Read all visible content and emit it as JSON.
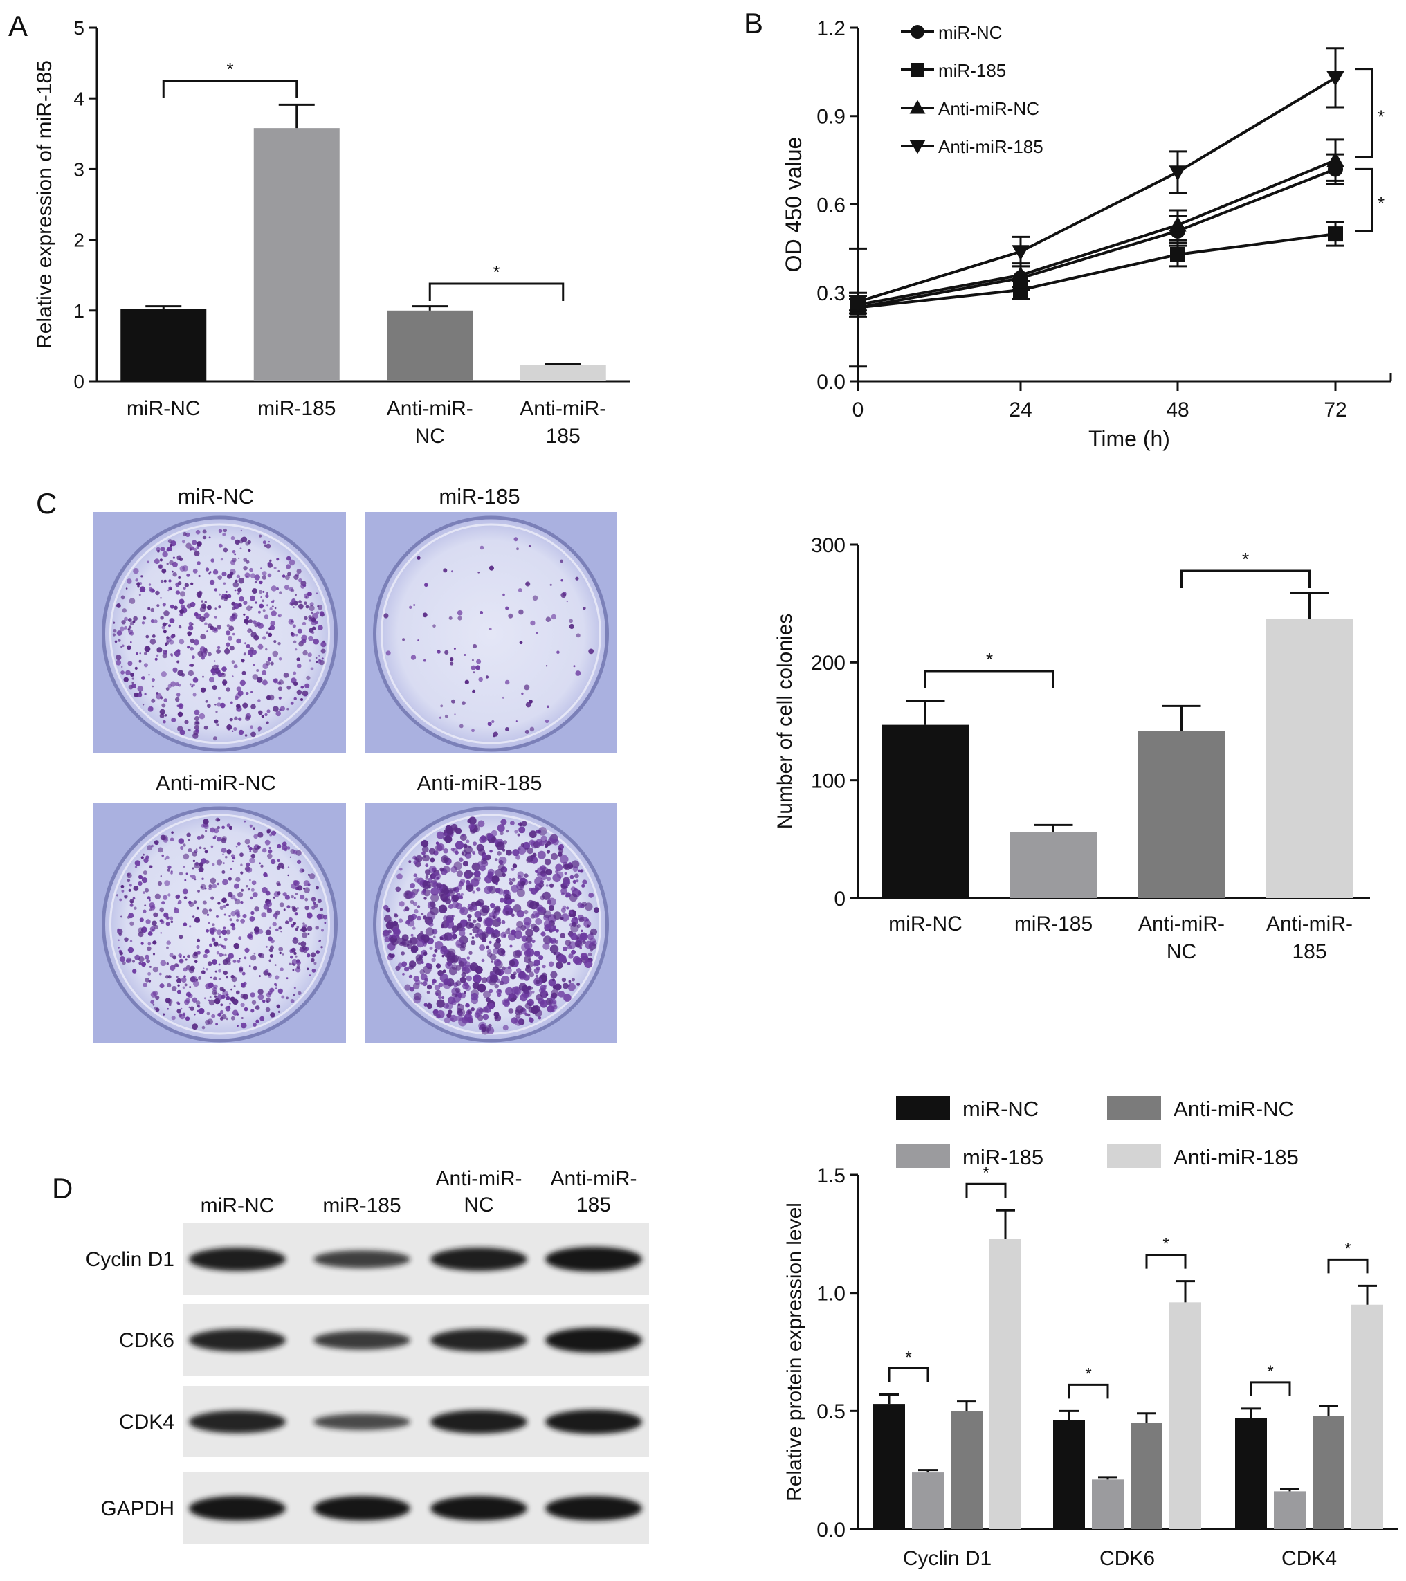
{
  "panel_letters": {
    "a": "A",
    "b": "B",
    "c": "C",
    "d": "D"
  },
  "colors": {
    "miR-NC": "#111111",
    "miR-185": "#9b9b9e",
    "Anti-miR-NC": "#7b7b7b",
    "Anti-miR-185": "#d4d4d4",
    "axis": "#111111",
    "plate_bg": "#aab1e0",
    "colony": "#5a2b86",
    "blot_bg": "#e8e8e8",
    "band": "#141414"
  },
  "chart_data": [
    {
      "id": "A",
      "type": "bar",
      "ylabel": "Relative expression of miR-185",
      "ylim": [
        0,
        5
      ],
      "yticks": [
        0,
        1,
        2,
        3,
        4,
        5
      ],
      "categories": [
        [
          "miR-NC"
        ],
        [
          "miR-185"
        ],
        [
          "Anti-miR-",
          "NC"
        ],
        [
          "Anti-miR-",
          "185"
        ]
      ],
      "values": [
        1.02,
        3.58,
        1.0,
        0.23
      ],
      "errors": [
        0.04,
        0.33,
        0.06,
        0.01
      ],
      "significance": [
        {
          "from": 0,
          "to": 1,
          "label": "*"
        },
        {
          "from": 2,
          "to": 3,
          "label": "*"
        }
      ]
    },
    {
      "id": "B",
      "type": "line",
      "xlabel": "Time (h)",
      "ylabel": "OD 450 value",
      "x": [
        0,
        24,
        48,
        72
      ],
      "xticks": [
        0,
        24,
        48,
        72
      ],
      "ylim": [
        0.0,
        1.2
      ],
      "yticks": [
        "0.0",
        "0.3",
        "0.6",
        "0.9",
        "1.2"
      ],
      "legend_position": "top-left",
      "series": [
        {
          "name": "miR-NC",
          "marker": "circle",
          "values": [
            0.25,
            0.35,
            0.51,
            0.72
          ],
          "errors": [
            0.2,
            0.04,
            0.05,
            0.05
          ]
        },
        {
          "name": "miR-185",
          "marker": "square",
          "values": [
            0.25,
            0.31,
            0.43,
            0.5
          ],
          "errors": [
            0.03,
            0.03,
            0.04,
            0.04
          ]
        },
        {
          "name": "Anti-miR-NC",
          "marker": "triangle-up",
          "values": [
            0.26,
            0.36,
            0.53,
            0.75
          ],
          "errors": [
            0.03,
            0.04,
            0.05,
            0.07
          ]
        },
        {
          "name": "Anti-miR-185",
          "marker": "triangle-down",
          "values": [
            0.27,
            0.44,
            0.71,
            1.03
          ],
          "errors": [
            0.03,
            0.05,
            0.07,
            0.1
          ]
        }
      ],
      "significance": [
        {
          "x": 72,
          "y1": 0.76,
          "y2": 1.06,
          "label": "*"
        },
        {
          "x": 72,
          "y1": 0.51,
          "y2": 0.72,
          "label": "*"
        }
      ]
    },
    {
      "id": "C",
      "type": "bar",
      "ylabel": "Number of cell colonies",
      "ylim": [
        0,
        300
      ],
      "yticks": [
        0,
        100,
        200,
        300
      ],
      "categories": [
        [
          "miR-NC"
        ],
        [
          "miR-185"
        ],
        [
          "Anti-miR-",
          "NC"
        ],
        [
          "Anti-miR-",
          "185"
        ]
      ],
      "values": [
        147,
        56,
        142,
        237
      ],
      "errors": [
        20,
        6,
        21,
        22
      ],
      "significance": [
        {
          "from": 0,
          "to": 1,
          "label": "*"
        },
        {
          "from": 2,
          "to": 3,
          "label": "*"
        }
      ]
    },
    {
      "id": "D",
      "type": "bar",
      "ylabel": "Relative protein expression level",
      "ylim": [
        0.0,
        1.5
      ],
      "yticks": [
        "0.0",
        "0.5",
        "1.0",
        "1.5"
      ],
      "categories": [
        "Cyclin D1",
        "CDK6",
        "CDK4"
      ],
      "legend_position": "top",
      "series": [
        {
          "name": "miR-NC",
          "values": [
            0.53,
            0.46,
            0.47
          ],
          "errors": [
            0.04,
            0.04,
            0.04
          ]
        },
        {
          "name": "miR-185",
          "values": [
            0.24,
            0.21,
            0.16
          ],
          "errors": [
            0.01,
            0.01,
            0.01
          ]
        },
        {
          "name": "Anti-miR-NC",
          "values": [
            0.5,
            0.45,
            0.48
          ],
          "errors": [
            0.04,
            0.04,
            0.04
          ]
        },
        {
          "name": "Anti-miR-185",
          "values": [
            1.23,
            0.96,
            0.95
          ],
          "errors": [
            0.12,
            0.09,
            0.08
          ]
        }
      ],
      "significance": [
        {
          "group": 0,
          "from": 0,
          "to": 1,
          "label": "*"
        },
        {
          "group": 0,
          "from": 2,
          "to": 3,
          "label": "*"
        },
        {
          "group": 1,
          "from": 0,
          "to": 1,
          "label": "*"
        },
        {
          "group": 1,
          "from": 2,
          "to": 3,
          "label": "*"
        },
        {
          "group": 2,
          "from": 0,
          "to": 1,
          "label": "*"
        },
        {
          "group": 2,
          "from": 2,
          "to": 3,
          "label": "*"
        }
      ]
    }
  ],
  "colony_plates": [
    {
      "title": "miR-NC",
      "density": 620,
      "size": 1.0
    },
    {
      "title": "miR-185",
      "density": 95,
      "size": 0.9
    },
    {
      "title": "Anti-miR-NC",
      "density": 680,
      "size": 1.0
    },
    {
      "title": "Anti-miR-185",
      "density": 950,
      "size": 1.45
    }
  ],
  "western_blot": {
    "lane_labels": [
      [
        "miR-NC"
      ],
      [
        "miR-185"
      ],
      [
        "Anti-miR-",
        "NC"
      ],
      [
        "Anti-miR-",
        "185"
      ]
    ],
    "rows": [
      {
        "label": "Cyclin D1",
        "intensities": [
          0.9,
          0.55,
          0.9,
          1.0
        ]
      },
      {
        "label": "CDK6",
        "intensities": [
          0.85,
          0.6,
          0.85,
          1.0
        ]
      },
      {
        "label": "CDK4",
        "intensities": [
          0.85,
          0.45,
          0.9,
          0.95
        ]
      },
      {
        "label": "GAPDH",
        "intensities": [
          1.0,
          1.0,
          1.0,
          1.0
        ]
      }
    ]
  }
}
